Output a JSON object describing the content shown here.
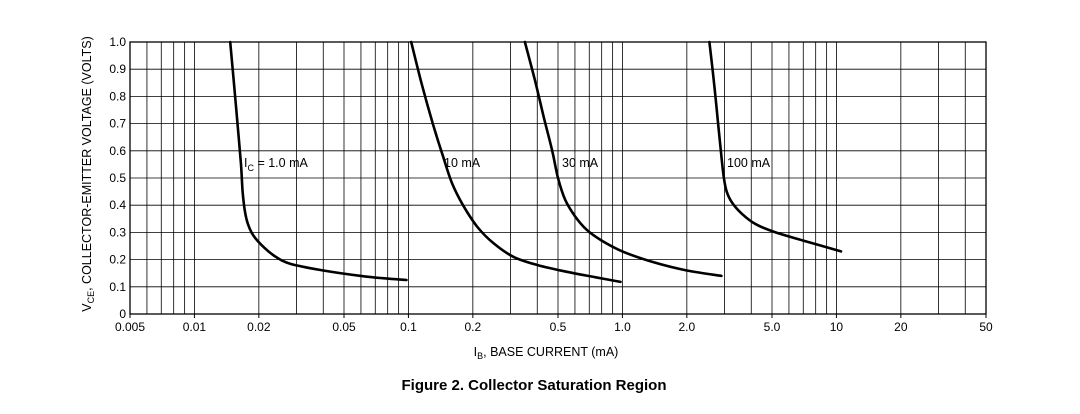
{
  "chart_data": {
    "type": "line",
    "title": "Figure 2. Collector Saturation Region",
    "xlabel": {
      "main": "I",
      "sub": "B",
      "rest": ", BASE CURRENT (mA)"
    },
    "ylabel": {
      "main": "V",
      "sub": "CE",
      "rest": ", COLLECTOR-EMITTER VOLTAGE (VOLTS)"
    },
    "x_scale": "log",
    "xlim": [
      0.005,
      50
    ],
    "ylim": [
      0,
      1.0
    ],
    "grid": true,
    "x_ticks": [
      {
        "value": 0.005,
        "label": "0.005"
      },
      {
        "value": 0.01,
        "label": "0.01"
      },
      {
        "value": 0.02,
        "label": "0.02"
      },
      {
        "value": 0.05,
        "label": "0.05"
      },
      {
        "value": 0.1,
        "label": "0.1"
      },
      {
        "value": 0.2,
        "label": "0.2"
      },
      {
        "value": 0.5,
        "label": "0.5"
      },
      {
        "value": 1.0,
        "label": "1.0"
      },
      {
        "value": 2.0,
        "label": "2.0"
      },
      {
        "value": 5.0,
        "label": "5.0"
      },
      {
        "value": 10,
        "label": "10"
      },
      {
        "value": 20,
        "label": "20"
      },
      {
        "value": 50,
        "label": "50"
      }
    ],
    "y_ticks": [
      {
        "value": 0,
        "label": "0"
      },
      {
        "value": 0.1,
        "label": "0.1"
      },
      {
        "value": 0.2,
        "label": "0.2"
      },
      {
        "value": 0.3,
        "label": "0.3"
      },
      {
        "value": 0.4,
        "label": "0.4"
      },
      {
        "value": 0.5,
        "label": "0.5"
      },
      {
        "value": 0.6,
        "label": "0.6"
      },
      {
        "value": 0.7,
        "label": "0.7"
      },
      {
        "value": 0.8,
        "label": "0.8"
      },
      {
        "value": 0.9,
        "label": "0.9"
      },
      {
        "value": 1.0,
        "label": "1.0"
      }
    ],
    "series": [
      {
        "name": "I_C = 1.0 mA",
        "label": {
          "main": "I",
          "sub": "C",
          "rest": " = 1.0 mA"
        },
        "x": [
          0.0147,
          0.0153,
          0.0159,
          0.0165,
          0.0168,
          0.0172,
          0.0178,
          0.0188,
          0.0205,
          0.0235,
          0.028,
          0.04,
          0.06,
          0.08,
          0.098
        ],
        "y": [
          1.0,
          0.85,
          0.7,
          0.55,
          0.45,
          0.38,
          0.33,
          0.29,
          0.255,
          0.215,
          0.185,
          0.16,
          0.14,
          0.13,
          0.125
        ]
      },
      {
        "name": "10 mA",
        "label": {
          "main": "10 mA",
          "sub": "",
          "rest": ""
        },
        "x": [
          0.103,
          0.115,
          0.13,
          0.145,
          0.16,
          0.18,
          0.21,
          0.25,
          0.31,
          0.4,
          0.55,
          0.75,
          0.98
        ],
        "y": [
          1.0,
          0.85,
          0.7,
          0.58,
          0.48,
          0.4,
          0.32,
          0.26,
          0.21,
          0.18,
          0.155,
          0.135,
          0.118
        ]
      },
      {
        "name": "30 mA",
        "label": {
          "main": "30 mA",
          "sub": "",
          "rest": ""
        },
        "x": [
          0.35,
          0.39,
          0.43,
          0.47,
          0.5,
          0.54,
          0.6,
          0.68,
          0.8,
          1.0,
          1.4,
          2.0,
          2.9
        ],
        "y": [
          1.0,
          0.86,
          0.72,
          0.6,
          0.5,
          0.42,
          0.36,
          0.31,
          0.27,
          0.23,
          0.19,
          0.16,
          0.14
        ]
      },
      {
        "name": "100 mA",
        "label": {
          "main": "100 mA",
          "sub": "",
          "rest": ""
        },
        "x": [
          2.55,
          2.68,
          2.8,
          2.9,
          2.98,
          3.07,
          3.25,
          3.6,
          4.2,
          5.2,
          7.0,
          10.5
        ],
        "y": [
          1.0,
          0.85,
          0.7,
          0.58,
          0.5,
          0.45,
          0.41,
          0.37,
          0.33,
          0.3,
          0.27,
          0.23
        ]
      }
    ]
  }
}
